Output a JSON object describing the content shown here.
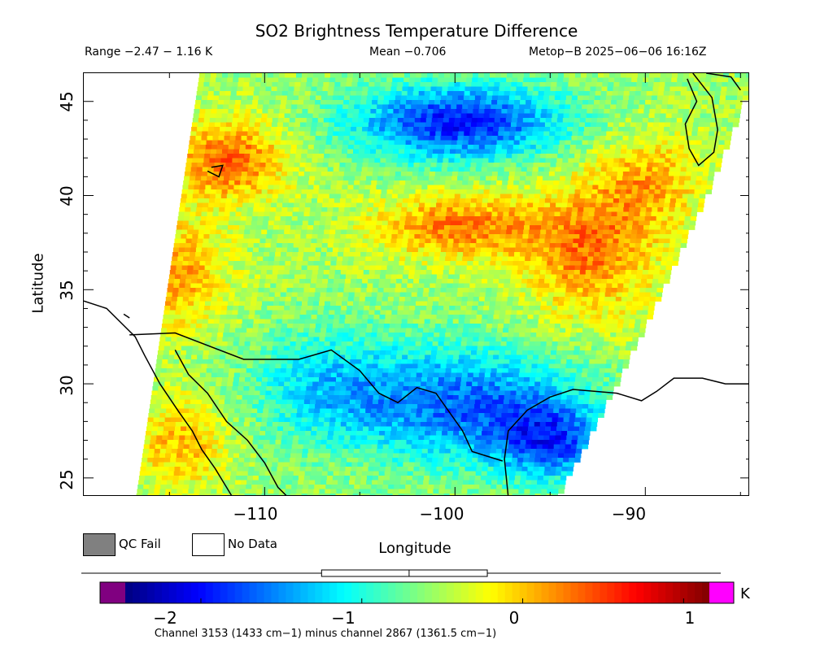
{
  "title": "SO2 Brightness Temperature Difference",
  "header": {
    "range": "Range −2.47 − 1.16 K",
    "mean": "Mean −0.706",
    "satellite": "Metop−B 2025−06−06 16:16Z"
  },
  "axes": {
    "xlabel": "Longitude",
    "ylabel": "Latitude",
    "x_ticks": [
      "−110",
      "−100",
      "−90"
    ],
    "y_ticks": [
      "45",
      "40",
      "35",
      "30",
      "25"
    ],
    "lon_range": [
      -119.5,
      -84.5
    ],
    "lat_range": [
      24.0,
      46.5
    ]
  },
  "legend": {
    "qc_fail": "QC Fail",
    "no_data": "No Data",
    "qc_fail_color": "#808080",
    "no_data_color": "#ffffff"
  },
  "colorbar": {
    "ticks": [
      "−2",
      "−1",
      "0",
      "1"
    ],
    "unit": "K",
    "caption": "Channel 3153 (1433 cm−1) minus channel 2867 (1361.5 cm−1)",
    "vmin": -2.47,
    "vmax": 1.16,
    "low_color": "#800080",
    "high_color": "#ff00ff",
    "stats_range": [
      -1.25,
      -0.22
    ],
    "stats_mean": -0.706
  },
  "map": {
    "projection": "lat-lon",
    "coastline_color": "#000000"
  }
}
